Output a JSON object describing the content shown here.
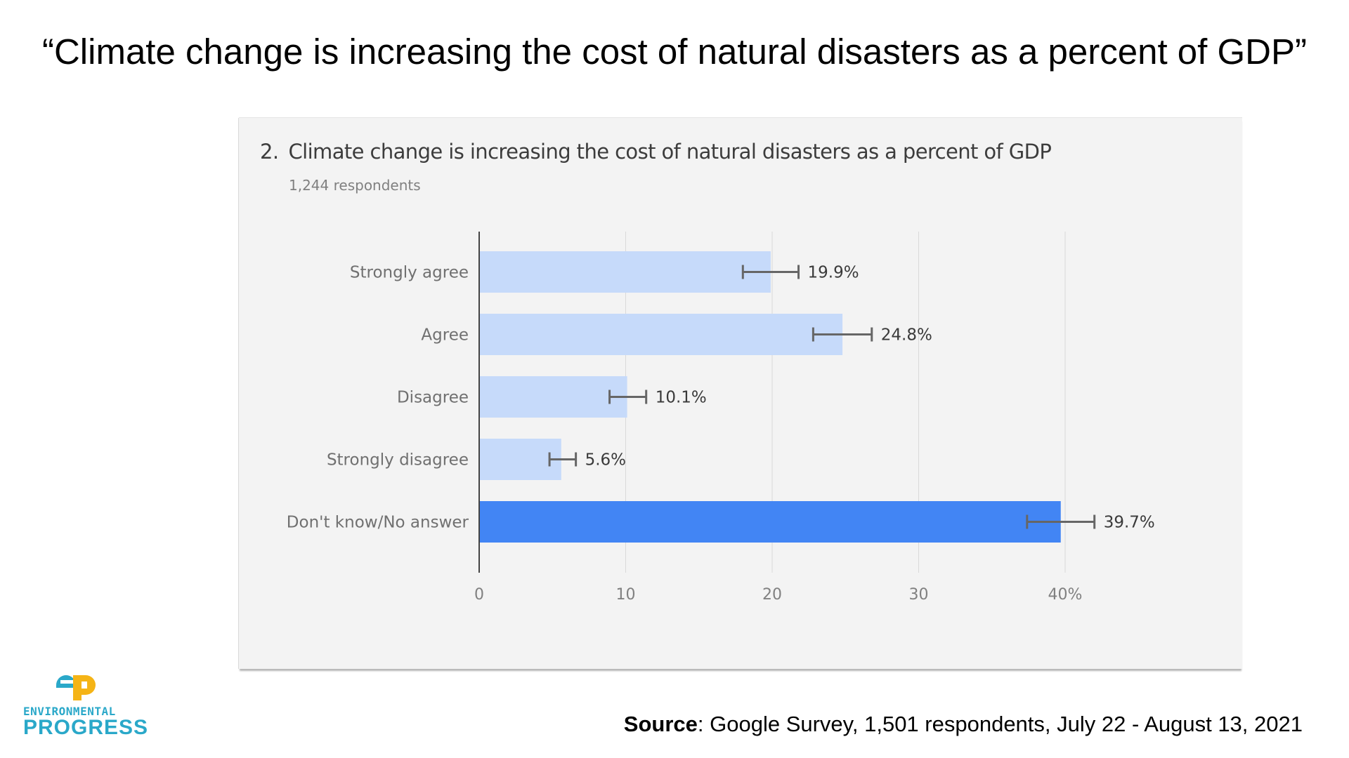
{
  "slide": {
    "title": "“Climate change is increasing the cost of natural disasters as a percent of GDP”",
    "source_label": "Source",
    "source_text": ": Google Survey, 1,501 respondents, July 22 - August 13, 2021"
  },
  "logo": {
    "line1": "ENVIRONMENTAL",
    "line2": "PROGRESS",
    "mark": "ep",
    "colors": {
      "primary": "#2aa8c9",
      "accent": "#f5b416"
    }
  },
  "panel": {
    "question_number": "2.",
    "question_text": "Climate change is increasing the cost of natural disasters as a percent of GDP",
    "respondents": "1,244 respondents"
  },
  "chart_data": {
    "type": "bar",
    "orientation": "horizontal",
    "categories": [
      "Strongly agree",
      "Agree",
      "Disagree",
      "Strongly disagree",
      "Don't know/No answer"
    ],
    "values": [
      19.9,
      24.8,
      10.1,
      5.6,
      39.7
    ],
    "value_labels": [
      "19.9%",
      "24.8%",
      "10.1%",
      "5.6%",
      "39.7%"
    ],
    "error_low": [
      18.0,
      22.8,
      8.9,
      4.8,
      37.4
    ],
    "error_high": [
      21.8,
      26.8,
      11.4,
      6.6,
      42.0
    ],
    "highlight_index": 4,
    "xlim": [
      0,
      40
    ],
    "x_ticks": [
      "0",
      "10",
      "20",
      "30",
      "40%"
    ],
    "grid": true,
    "colors": {
      "bar": "#c6dafa",
      "highlight": "#4285f4",
      "error_bar": "#666666",
      "grid": "#d9d9d9",
      "axis": "#444444"
    }
  }
}
